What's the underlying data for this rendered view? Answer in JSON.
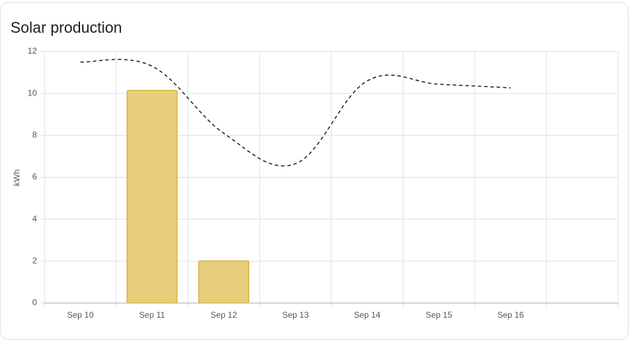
{
  "chart_data": {
    "type": "bar",
    "title": "Solar production",
    "y_label": "kWh",
    "categories": [
      "Sep 10",
      "Sep 11",
      "Sep 12",
      "Sep 13",
      "Sep 14",
      "Sep 15",
      "Sep 16",
      null
    ],
    "series": [
      {
        "type": "bar",
        "color": "#e6cd7a",
        "values": [
          null,
          10.15,
          2.02,
          null,
          null,
          null,
          null,
          null
        ]
      },
      {
        "type": "line",
        "color": "#222222",
        "dashed": true,
        "values": [
          11.5,
          11.3,
          8.1,
          6.65,
          10.6,
          10.44,
          10.27,
          null
        ]
      }
    ],
    "ylim": [
      0,
      12
    ],
    "yticks": [
      0,
      2,
      4,
      6,
      8,
      10,
      12
    ],
    "grid": true
  }
}
